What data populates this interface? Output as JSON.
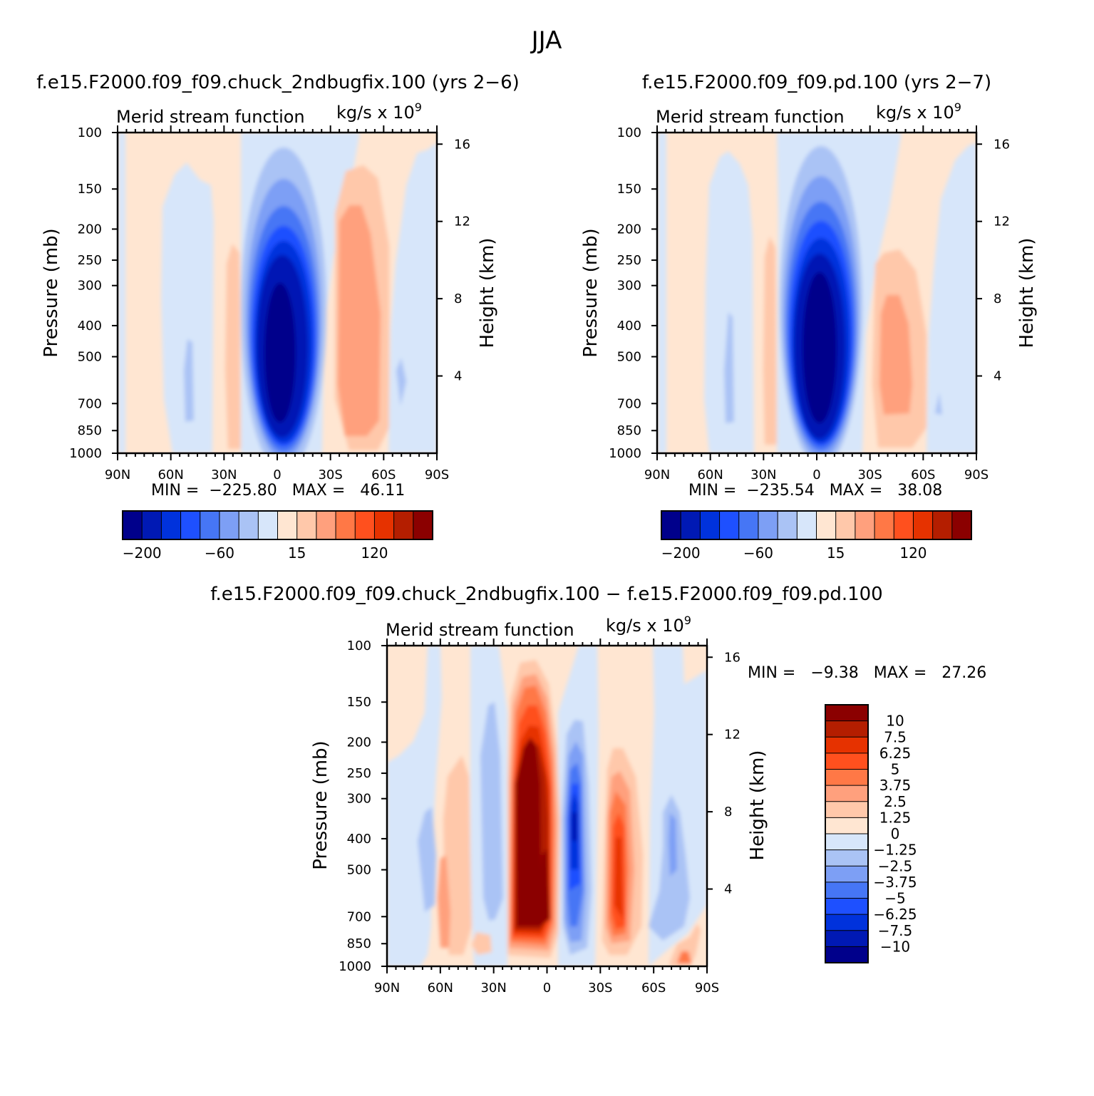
{
  "page": {
    "title": "JJA"
  },
  "chart_data": [
    {
      "type": "contour",
      "title": "f.e15.F2000.f09_f09.chuck_2ndbugfix.100 (yrs 2−6)",
      "left_string": "Merid stream function",
      "units_text": "kg/s x 10",
      "units_exponent": "9",
      "ylabel": "Pressure (mb)",
      "ylabel_right": "Height (km)",
      "pressure_ticks": [
        "100",
        "150",
        "200",
        "250",
        "300",
        "400",
        "500",
        "700",
        "850",
        "1000"
      ],
      "height_ticks": [
        "16",
        "12",
        "8",
        "4"
      ],
      "lat_ticks": [
        "90N",
        "60N",
        "30N",
        "0",
        "30S",
        "60S",
        "90S"
      ],
      "min_max_text": "MIN =  −225.80   MAX =   46.11",
      "colorbar": {
        "colors": [
          "#00008b",
          "#0019b4",
          "#0032dc",
          "#1e50ff",
          "#4676f5",
          "#7d9ff5",
          "#aac3f5",
          "#d7e6fa",
          "#ffe6d2",
          "#ffc8aa",
          "#ffa07d",
          "#ff7846",
          "#ff501e",
          "#e63200",
          "#b41e00",
          "#8b0000"
        ],
        "labels": [
          "−200",
          "−60",
          "15",
          "120"
        ]
      },
      "features": [
        {
          "lat": 0,
          "p": 450,
          "value": -225.8,
          "sign": "neg"
        },
        {
          "lat": -45,
          "p": 450,
          "value": 46.11,
          "sign": "pos"
        }
      ]
    },
    {
      "type": "contour",
      "title": "f.e15.F2000.f09_f09.pd.100 (yrs 2−7)",
      "left_string": "Merid stream function",
      "units_text": "kg/s x 10",
      "units_exponent": "9",
      "ylabel": "Pressure (mb)",
      "ylabel_right": "Height (km)",
      "pressure_ticks": [
        "100",
        "150",
        "200",
        "250",
        "300",
        "400",
        "500",
        "700",
        "850",
        "1000"
      ],
      "height_ticks": [
        "16",
        "12",
        "8",
        "4"
      ],
      "lat_ticks": [
        "90N",
        "60N",
        "30N",
        "0",
        "30S",
        "60S",
        "90S"
      ],
      "min_max_text": "MIN =  −235.54   MAX =   38.08",
      "colorbar": {
        "colors": [
          "#00008b",
          "#0019b4",
          "#0032dc",
          "#1e50ff",
          "#4676f5",
          "#7d9ff5",
          "#aac3f5",
          "#d7e6fa",
          "#ffe6d2",
          "#ffc8aa",
          "#ffa07d",
          "#ff7846",
          "#ff501e",
          "#e63200",
          "#b41e00",
          "#8b0000"
        ],
        "labels": [
          "−200",
          "−60",
          "15",
          "120"
        ]
      },
      "features": [
        {
          "lat": 0,
          "p": 450,
          "value": -235.54,
          "sign": "neg"
        },
        {
          "lat": -45,
          "p": 450,
          "value": 38.08,
          "sign": "pos"
        }
      ]
    },
    {
      "type": "contour",
      "title": "f.e15.F2000.f09_f09.chuck_2ndbugfix.100 − f.e15.F2000.f09_f09.pd.100",
      "left_string": "Merid stream function",
      "units_text": "kg/s x 10",
      "units_exponent": "9",
      "ylabel": "Pressure (mb)",
      "ylabel_right": "Height (km)",
      "pressure_ticks": [
        "100",
        "150",
        "200",
        "250",
        "300",
        "400",
        "500",
        "700",
        "850",
        "1000"
      ],
      "height_ticks": [
        "16",
        "12",
        "8",
        "4"
      ],
      "lat_ticks": [
        "90N",
        "60N",
        "30N",
        "0",
        "30S",
        "60S",
        "90S"
      ],
      "min_max_text": "MIN =   −9.38   MAX =   27.26",
      "colorbar": {
        "colors": [
          "#8b0000",
          "#b41e00",
          "#e63200",
          "#ff501e",
          "#ff7846",
          "#ffa07d",
          "#ffc8aa",
          "#ffe6d2",
          "#d7e6fa",
          "#aac3f5",
          "#7d9ff5",
          "#4676f5",
          "#1e50ff",
          "#0032dc",
          "#0019b4",
          "#00008b"
        ],
        "labels": [
          "10",
          "7.5",
          "6.25",
          "5",
          "3.75",
          "2.5",
          "1.25",
          "0",
          "−1.25",
          "−2.5",
          "−3.75",
          "−5",
          "−6.25",
          "−7.5",
          "−10"
        ]
      },
      "features": [
        {
          "lat": 12,
          "p": 450,
          "value": 27.26,
          "sign": "pos"
        },
        {
          "lat": -15,
          "p": 450,
          "value": -9.38,
          "sign": "neg"
        },
        {
          "lat": -38,
          "p": 450,
          "value": 6.5,
          "sign": "pos"
        }
      ]
    }
  ]
}
